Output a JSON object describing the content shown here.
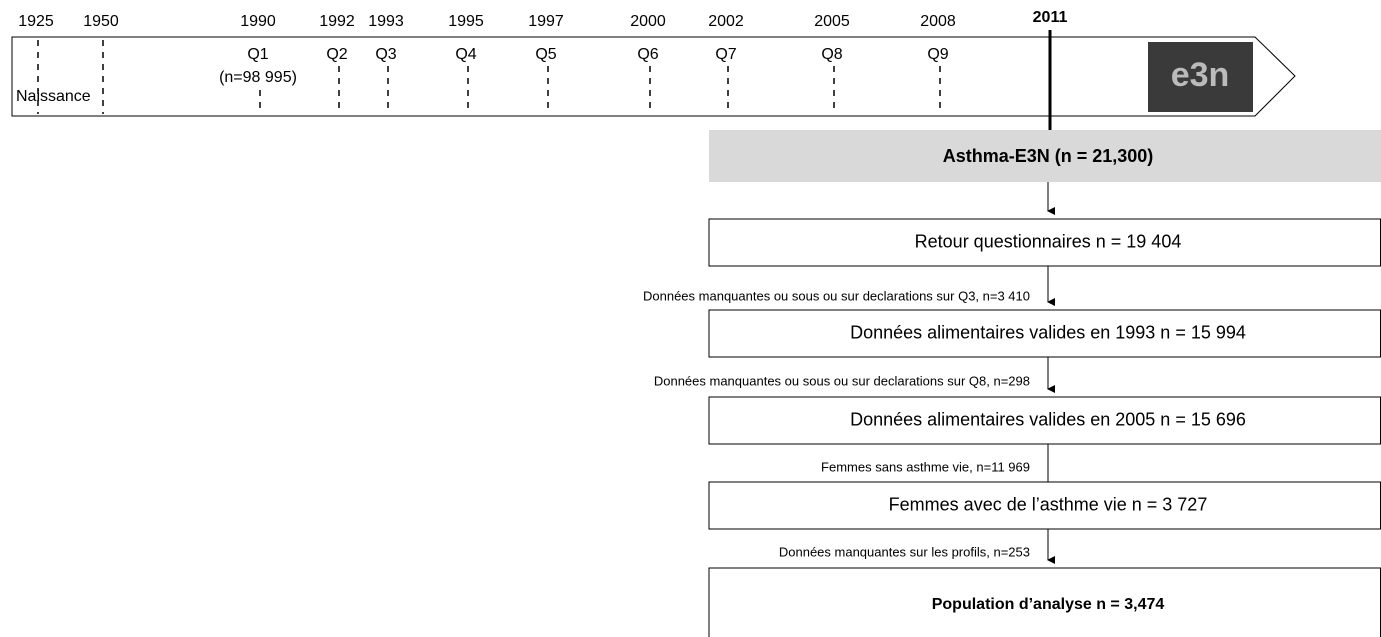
{
  "timeline": {
    "birth_label": "Naissance",
    "ticks": [
      {
        "year": "1925"
      },
      {
        "year": "1950"
      },
      {
        "year": "1990",
        "question": "Q1",
        "note": "(n=98 995)"
      },
      {
        "year": "1992",
        "question": "Q2"
      },
      {
        "year": "1993",
        "question": "Q3"
      },
      {
        "year": "1995",
        "question": "Q4"
      },
      {
        "year": "1997",
        "question": "Q5"
      },
      {
        "year": "2000",
        "question": "Q6"
      },
      {
        "year": "2002",
        "question": "Q7"
      },
      {
        "year": "2005",
        "question": "Q8"
      },
      {
        "year": "2008",
        "question": "Q9"
      }
    ],
    "current_year": "2011",
    "logo": "e3n"
  },
  "flow": {
    "cohort": "Asthma-E3N  (n = 21,300)",
    "steps": [
      {
        "label": "Retour questionnaires  n = 19 404"
      },
      {
        "exclusion": "Données manquantes ou sous ou sur declarations sur Q3, n=3 410",
        "label": "Données alimentaires valides en 1993  n = 15 994"
      },
      {
        "exclusion": "Données manquantes ou sous ou sur declarations sur Q8, n=298",
        "label": "Données alimentaires valides en 2005  n = 15 696"
      },
      {
        "exclusion": "Femmes sans asthme vie, n=11 969",
        "label": "Femmes avec de l’asthme vie  n = 3 727"
      },
      {
        "exclusion": "Données manquantes sur les profils, n=253",
        "label": "Population d’analyse n = 3,474"
      }
    ]
  }
}
